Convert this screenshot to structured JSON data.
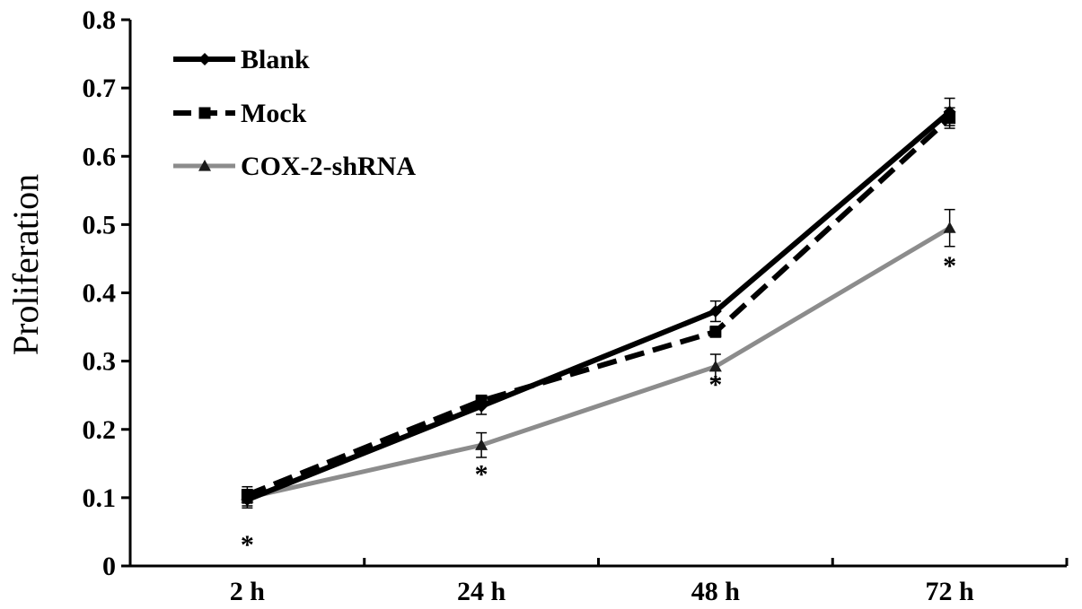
{
  "chart_data": {
    "type": "line",
    "title": "",
    "xlabel": "",
    "ylabel": "Proliferation",
    "categories": [
      "2 h",
      "24 h",
      "48 h",
      "72 h"
    ],
    "ylim": [
      0,
      0.8
    ],
    "yticks": [
      "0",
      "0.1",
      "0.2",
      "0.3",
      "0.4",
      "0.5",
      "0.6",
      "0.7",
      "0.8"
    ],
    "grid": false,
    "legend": "top-left",
    "series": [
      {
        "name": "Blank",
        "values": [
          0.097,
          0.234,
          0.373,
          0.665
        ],
        "errors": [
          0.012,
          0.012,
          0.015,
          0.02
        ],
        "color": "#000000",
        "style": "solid",
        "marker": "diamond"
      },
      {
        "name": "Mock",
        "values": [
          0.104,
          0.242,
          0.343,
          0.656
        ],
        "errors": [
          0.012,
          0.008,
          0.008,
          0.015
        ],
        "color": "#000000",
        "style": "dashed",
        "marker": "square"
      },
      {
        "name": "COX-2-shRNA",
        "values": [
          0.1,
          0.177,
          0.292,
          0.495
        ],
        "errors": [
          0.012,
          0.018,
          0.018,
          0.027
        ],
        "color": "#8c8c8c",
        "style": "solid",
        "marker": "triangle"
      }
    ],
    "annotations": [
      {
        "category": "2 h",
        "text": "*"
      },
      {
        "category": "24 h",
        "text": "*"
      },
      {
        "category": "48 h",
        "text": "*"
      },
      {
        "category": "72 h",
        "text": "*"
      }
    ]
  }
}
